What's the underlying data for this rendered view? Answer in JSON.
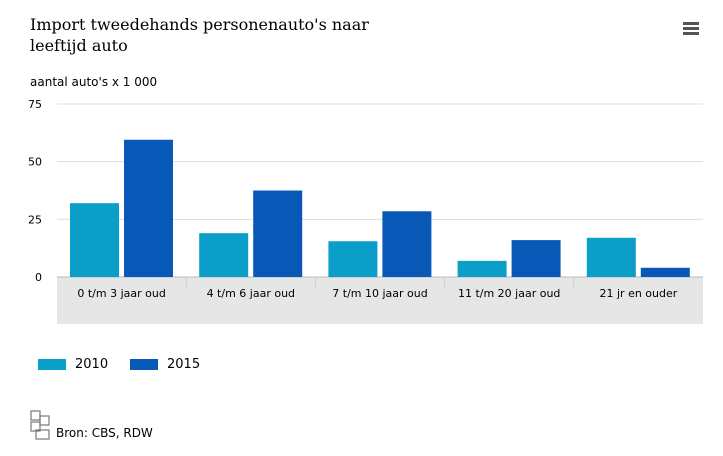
{
  "title": "Import tweedehands personenauto's naar leeftijd auto",
  "unit_label": "aantal auto's x 1 000",
  "source": "Bron: CBS, RDW",
  "colors": {
    "series_2010": "#0a9ec8",
    "series_2015": "#0859b7",
    "grid": "#dddddd",
    "axis_band": "#e6e6e6"
  },
  "chart_data": {
    "type": "bar",
    "title": "Import tweedehands personenauto's naar leeftijd auto",
    "ylabel": "aantal auto's x 1 000",
    "xlabel": "",
    "ylim": [
      0,
      75
    ],
    "yticks": [
      "0",
      "25",
      "50",
      "75"
    ],
    "grid": true,
    "legend_position": "bottom-left",
    "categories": [
      "0 t/m 3 jaar oud",
      "4 t/m 6 jaar oud",
      "7 t/m 10 jaar oud",
      "11 t/m 20 jaar oud",
      "21 jr en ouder"
    ],
    "series": [
      {
        "name": "2010",
        "values": [
          32,
          19,
          15.5,
          7,
          17
        ]
      },
      {
        "name": "2015",
        "values": [
          59.5,
          37.5,
          28.5,
          16,
          4
        ]
      }
    ]
  }
}
